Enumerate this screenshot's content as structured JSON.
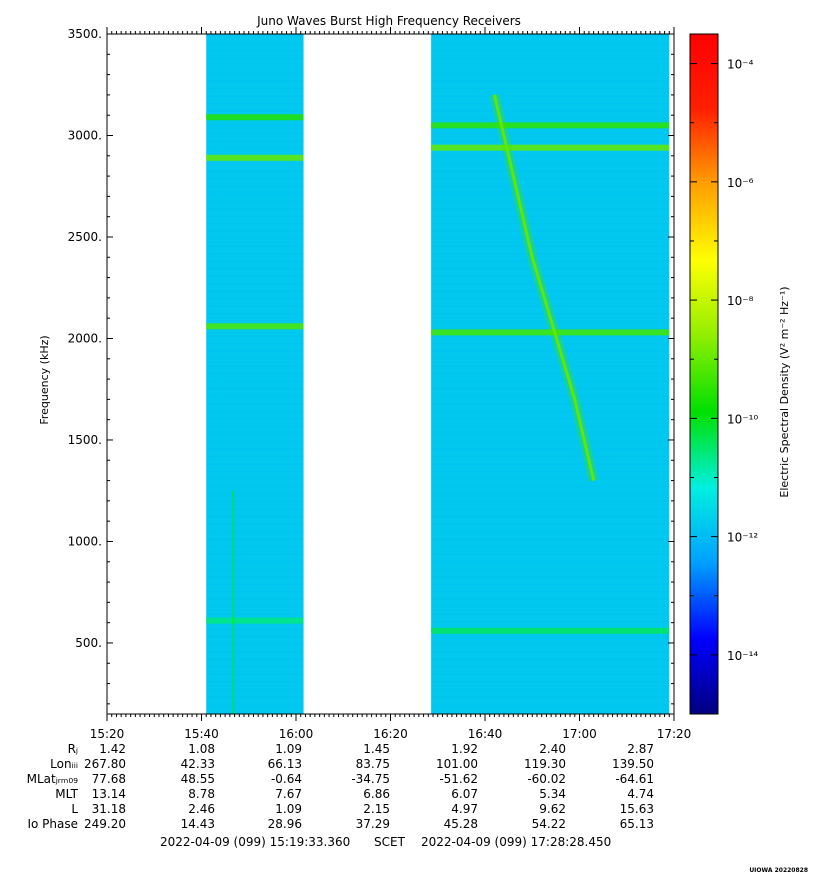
{
  "chart_data": {
    "type": "heatmap",
    "title": "Juno Waves Burst High Frequency Receivers",
    "ylabel": "Frequency (kHz)",
    "ylim": [
      150,
      3500
    ],
    "yticks": [
      500,
      1000,
      1500,
      2000,
      2500,
      3000,
      3500
    ],
    "ytick_labels": [
      "500.",
      "1000.",
      "1500.",
      "2000.",
      "2500.",
      "3000.",
      "3500."
    ],
    "xlim_minutes": [
      920,
      1040
    ],
    "xticks_minutes": [
      920,
      940,
      960,
      980,
      1000,
      1020,
      1040
    ],
    "xtick_labels": [
      "15:20",
      "15:40",
      "16:00",
      "16:20",
      "16:40",
      "17:00",
      "17:20"
    ],
    "data_intervals_minutes": [
      [
        941.0,
        961.6
      ],
      [
        988.6,
        1039.0
      ]
    ],
    "background_level_exp": -11.8,
    "bands": [
      {
        "freq": 3090,
        "start": 941.0,
        "end": 961.6,
        "exp": -9.6
      },
      {
        "freq": 2890,
        "start": 941.0,
        "end": 961.6,
        "exp": -9.0
      },
      {
        "freq": 2060,
        "start": 941.0,
        "end": 961.6,
        "exp": -9.2
      },
      {
        "freq": 610,
        "start": 941.0,
        "end": 961.6,
        "exp": -10.6
      },
      {
        "freq": 3050,
        "start": 988.6,
        "end": 1039.0,
        "exp": -9.5
      },
      {
        "freq": 2940,
        "start": 988.6,
        "end": 1039.0,
        "exp": -9.0
      },
      {
        "freq": 2030,
        "start": 988.6,
        "end": 1039.0,
        "exp": -9.3
      },
      {
        "freq": 560,
        "start": 988.6,
        "end": 1039.0,
        "exp": -10.4
      }
    ],
    "burst": [
      {
        "t": 1002,
        "f": 3200
      },
      {
        "t": 1010,
        "f": 2400
      },
      {
        "t": 1019,
        "f": 1700
      },
      {
        "t": 1023,
        "f": 1300
      }
    ],
    "colorbar": {
      "label": "Electric Spectral Density (V² m⁻² Hz⁻¹)",
      "range_exp": [
        -15,
        -3.5
      ],
      "tick_exps": [
        -14,
        -12,
        -10,
        -8,
        -6,
        -4
      ],
      "tick_labels": [
        "10⁻¹⁴",
        "10⁻¹²",
        "10⁻¹⁰",
        "10⁻⁸",
        "10⁻⁶",
        "10⁻⁴"
      ],
      "colors": [
        "#000080",
        "#0000ff",
        "#00a0ff",
        "#00f0e0",
        "#00e000",
        "#90ee00",
        "#ffff00",
        "#ffa000",
        "#ff2000",
        "#ff0000"
      ]
    },
    "ephemeris": {
      "labels": [
        "Rⱼ",
        "Lonᵢᵢᵢ",
        "MLatⱼᵣₘ₀₉",
        "MLT",
        "L",
        "Io Phase"
      ],
      "rows": [
        [
          "1.42",
          "1.08",
          "1.09",
          "1.45",
          "1.92",
          "2.40",
          "2.87"
        ],
        [
          "267.80",
          "42.33",
          "66.13",
          "83.75",
          "101.00",
          "119.30",
          "139.50"
        ],
        [
          "77.68",
          "48.55",
          "-0.64",
          "-34.75",
          "-51.62",
          "-60.02",
          "-64.61"
        ],
        [
          "13.14",
          "8.78",
          "7.67",
          "6.86",
          "6.07",
          "5.34",
          "4.74"
        ],
        [
          "31.18",
          "2.46",
          "1.09",
          "2.15",
          "4.97",
          "9.62",
          "15.63"
        ],
        [
          "249.20",
          "14.43",
          "28.96",
          "37.29",
          "45.28",
          "54.22",
          "65.13"
        ]
      ]
    },
    "time_range_start": "2022-04-09 (099) 15:19:33.360",
    "time_range_label": "SCET",
    "time_range_end": "2022-04-09 (099) 17:28:28.450",
    "credit": "UIOWA 20220828"
  }
}
